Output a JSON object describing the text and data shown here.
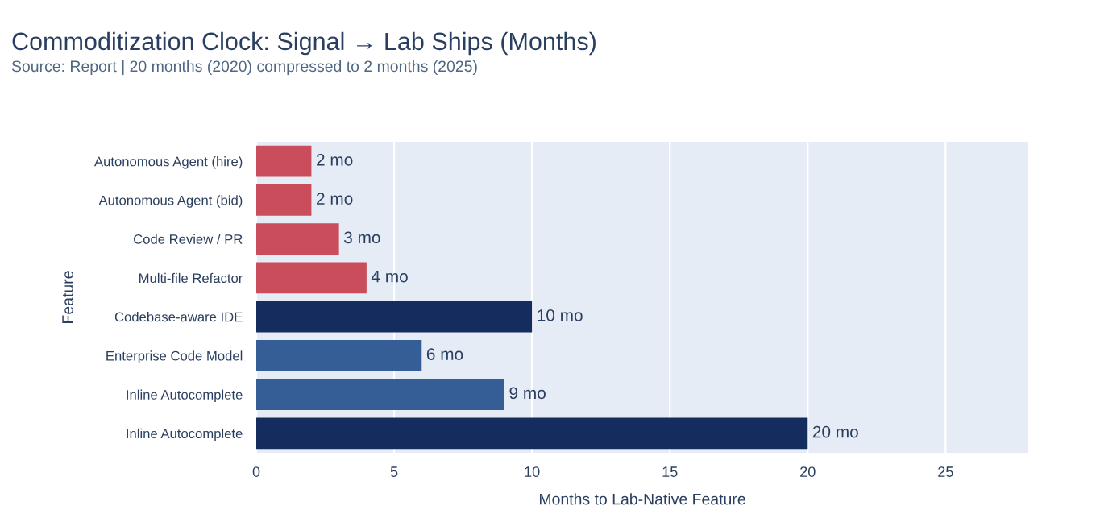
{
  "chart_data": {
    "type": "bar",
    "orientation": "horizontal",
    "title": "Commoditization Clock: Signal → Lab Ships (Months)",
    "subtitle": "Source: Report | 20 months (2020) compressed to 2 months (2025)",
    "xlabel": "Months to Lab-Native Feature",
    "ylabel": "Feature",
    "categories": [
      "Autonomous Agent (hire)",
      "Autonomous Agent (bid)",
      "Code Review / PR",
      "Multi-file Refactor",
      "Codebase-aware IDE",
      "Enterprise Code Model",
      "Inline Autocomplete",
      "Inline Autocomplete"
    ],
    "values": [
      2,
      2,
      3,
      4,
      10,
      6,
      9,
      20
    ],
    "colors": [
      "#c94d5a",
      "#c94d5a",
      "#c94d5a",
      "#c94d5a",
      "#152c5e",
      "#355d96",
      "#355d96",
      "#152c5e"
    ],
    "value_labels": [
      "2 mo",
      "2 mo",
      "3 mo",
      "4 mo",
      "10 mo",
      "6 mo",
      "9 mo",
      "20 mo"
    ],
    "xlim": [
      0,
      28
    ],
    "xticks": [
      0,
      5,
      10,
      15,
      20,
      25
    ],
    "grid": "x"
  }
}
